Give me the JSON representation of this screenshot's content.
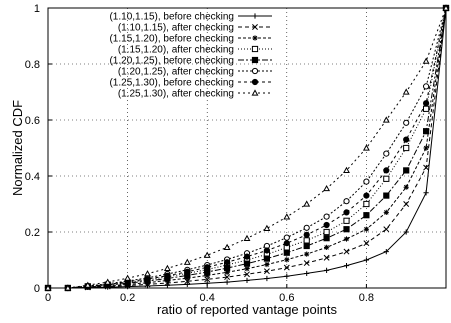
{
  "chart_data": {
    "type": "line",
    "xlabel": "ratio of reported vantage points",
    "ylabel": "Normalized CDF",
    "xlim": [
      0,
      1
    ],
    "ylim": [
      0,
      1
    ],
    "x_ticks": [
      "0",
      "0.2",
      "0.4",
      "0.6",
      "0.8"
    ],
    "y_ticks": [
      "0",
      "0.2",
      "0.4",
      "0.6",
      "0.8",
      "1"
    ],
    "grid": true,
    "legend_position": "top-left",
    "x": [
      0.0,
      0.05,
      0.1,
      0.15,
      0.2,
      0.25,
      0.3,
      0.35,
      0.4,
      0.45,
      0.5,
      0.55,
      0.6,
      0.65,
      0.7,
      0.75,
      0.8,
      0.85,
      0.9,
      0.95,
      1.0
    ],
    "series": [
      {
        "name": "(1.10,1.15), before checking",
        "marker": "plus",
        "dash": "none",
        "values": [
          0,
          0,
          0.002,
          0.003,
          0.005,
          0.007,
          0.01,
          0.013,
          0.017,
          0.021,
          0.027,
          0.034,
          0.042,
          0.052,
          0.063,
          0.08,
          0.1,
          0.13,
          0.2,
          0.34,
          1.0
        ]
      },
      {
        "name": "(1.10,1.15),   after checking",
        "marker": "x",
        "dash": "4,3",
        "values": [
          0,
          0,
          0.002,
          0.005,
          0.009,
          0.013,
          0.018,
          0.024,
          0.031,
          0.039,
          0.049,
          0.06,
          0.073,
          0.089,
          0.108,
          0.13,
          0.16,
          0.21,
          0.3,
          0.43,
          1.0
        ]
      },
      {
        "name": "(1.15,1.20), before checking",
        "marker": "asterisk",
        "dash": "3,2",
        "values": [
          0,
          0,
          0.004,
          0.008,
          0.013,
          0.019,
          0.027,
          0.035,
          0.045,
          0.056,
          0.069,
          0.084,
          0.101,
          0.121,
          0.145,
          0.175,
          0.21,
          0.27,
          0.36,
          0.5,
          1.0
        ]
      },
      {
        "name": "(1.15,1.20),   after checking",
        "marker": "square-open",
        "dash": "1,2",
        "values": [
          0,
          0,
          0.006,
          0.012,
          0.02,
          0.029,
          0.04,
          0.052,
          0.066,
          0.082,
          0.1,
          0.12,
          0.145,
          0.17,
          0.2,
          0.24,
          0.3,
          0.39,
          0.5,
          0.64,
          1.0
        ]
      },
      {
        "name": "(1.20,1.25), before checking",
        "marker": "square-filled",
        "dash": "6,2,2,2",
        "values": [
          0,
          0,
          0.005,
          0.01,
          0.017,
          0.025,
          0.034,
          0.045,
          0.057,
          0.071,
          0.087,
          0.105,
          0.126,
          0.15,
          0.178,
          0.21,
          0.26,
          0.33,
          0.42,
          0.56,
          1.0
        ]
      },
      {
        "name": "(1.20,1.25),   after checking",
        "marker": "circle-open",
        "dash": "2,2",
        "values": [
          0,
          0,
          0.007,
          0.015,
          0.025,
          0.036,
          0.05,
          0.065,
          0.082,
          0.102,
          0.124,
          0.15,
          0.18,
          0.215,
          0.255,
          0.31,
          0.38,
          0.48,
          0.59,
          0.72,
          1.0
        ]
      },
      {
        "name": "(1.25,1.30), before checking",
        "marker": "circle-filled",
        "dash": "3,3",
        "values": [
          0,
          0,
          0.006,
          0.013,
          0.022,
          0.032,
          0.044,
          0.058,
          0.074,
          0.092,
          0.112,
          0.134,
          0.16,
          0.19,
          0.225,
          0.27,
          0.33,
          0.42,
          0.53,
          0.66,
          1.0
        ]
      },
      {
        "name": "(1.25,1.30),   after checking",
        "marker": "triangle-open",
        "dash": "2,3",
        "values": [
          0,
          0,
          0.01,
          0.021,
          0.035,
          0.051,
          0.07,
          0.092,
          0.117,
          0.145,
          0.177,
          0.213,
          0.254,
          0.3,
          0.355,
          0.42,
          0.5,
          0.6,
          0.7,
          0.81,
          1.0
        ]
      }
    ]
  }
}
